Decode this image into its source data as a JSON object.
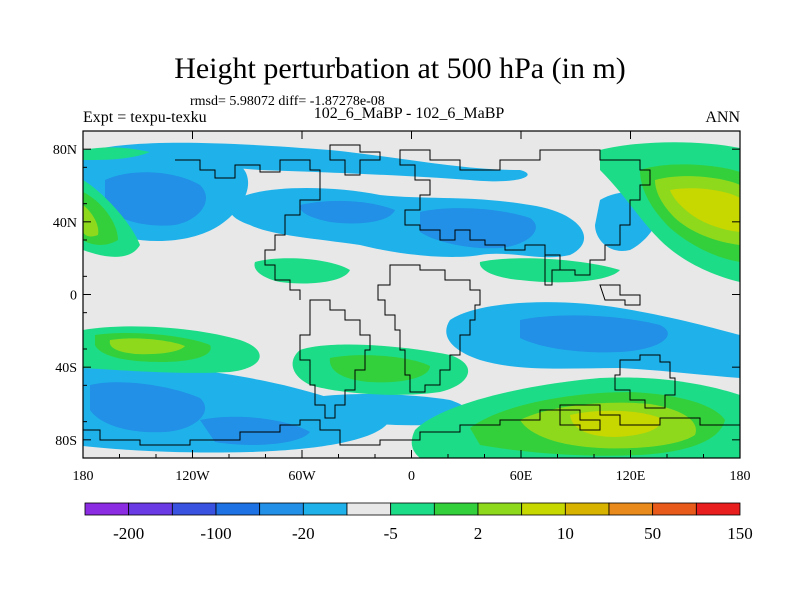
{
  "header": {
    "title": "Height perturbation at 500 hPa (in m)",
    "stats": "rmsd= 5.98072 diff= -1.87278e-08",
    "experiment": "Expt = texpu-texku",
    "case": "102_6_MaBP - 102_6_MaBP",
    "season": "ANN"
  },
  "map": {
    "x_ticks": [
      "180",
      "120W",
      "60W",
      "0",
      "60E",
      "120E",
      "180"
    ],
    "y_ticks": [
      "80N",
      "40N",
      "0",
      "40S",
      "80S"
    ],
    "background_color": "#e8e8e8"
  },
  "colorbar": {
    "colors": [
      "#8b2be2",
      "#6a3be4",
      "#3a52e0",
      "#1f72e3",
      "#2190e6",
      "#1fb2ea",
      "#e8e8e8",
      "#1ddc87",
      "#33d03c",
      "#8fd91d",
      "#c7d700",
      "#d8b400",
      "#e88a1c",
      "#e85a1a",
      "#e81d1d"
    ],
    "labels": [
      "-200",
      "-100",
      "-20",
      "-5",
      "2",
      "10",
      "50",
      "150"
    ]
  }
}
